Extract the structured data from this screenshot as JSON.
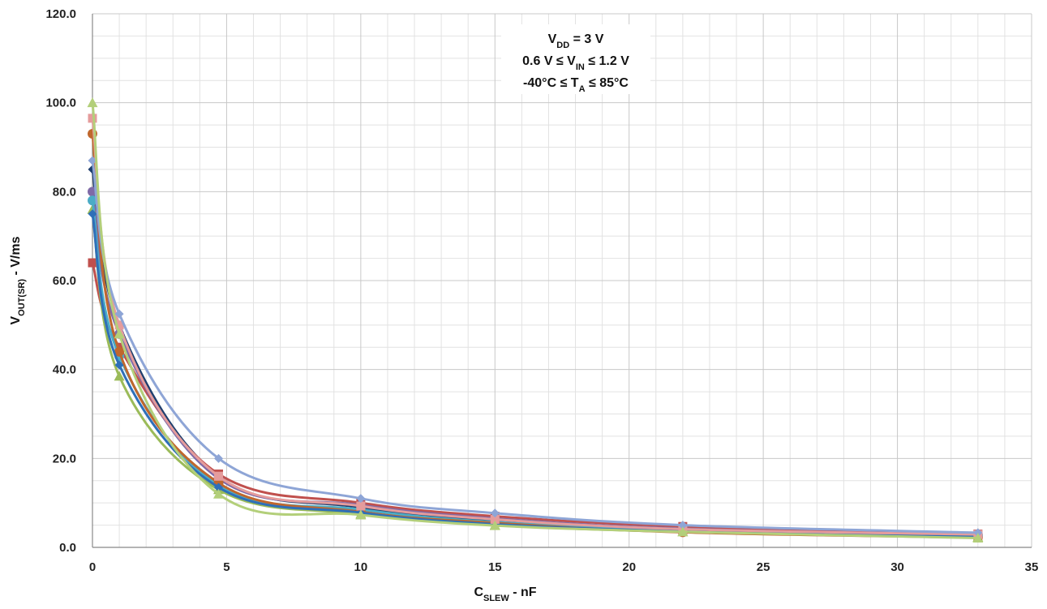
{
  "chart_data": {
    "type": "line",
    "title": "",
    "xlabel": {
      "main": "C",
      "sub": "SLEW",
      "rest": " - nF"
    },
    "ylabel": {
      "main": "V",
      "sub": "OUT(SR)",
      "rest": " - V/ms"
    },
    "xlim": [
      0,
      35
    ],
    "ylim": [
      0,
      120
    ],
    "x_ticks": [
      0,
      5,
      10,
      15,
      20,
      25,
      30,
      35
    ],
    "x_tick_labels": [
      "0",
      "5",
      "10",
      "15",
      "20",
      "25",
      "30",
      "35"
    ],
    "y_ticks": [
      0,
      20,
      40,
      60,
      80,
      100,
      120
    ],
    "y_tick_labels": [
      "0.0",
      "20.0",
      "40.0",
      "60.0",
      "80.0",
      "100.0",
      "120.0"
    ],
    "grid": true,
    "legend": "none",
    "annotation_lines": [
      [
        {
          "t": "V"
        },
        {
          "t": "DD",
          "sub": true
        },
        {
          "t": " = 3 V"
        }
      ],
      [
        {
          "t": "0.6 V ≤ V"
        },
        {
          "t": "IN",
          "sub": true
        },
        {
          "t": " ≤ 1.2 V"
        }
      ],
      [
        {
          "t": "-40°C ≤ T"
        },
        {
          "t": "A",
          "sub": true
        },
        {
          "t": " ≤ 85°C"
        }
      ]
    ],
    "x": [
      0,
      1,
      4.7,
      10,
      15,
      22,
      33
    ],
    "series": [
      {
        "color": "#1f3f6e",
        "marker": "diamond",
        "values": [
          85.0,
          50.0,
          16.0,
          9.0,
          6.0,
          4.0,
          2.7
        ]
      },
      {
        "color": "#c0504d",
        "marker": "square",
        "values": [
          64.0,
          45.0,
          16.5,
          10.0,
          7.0,
          4.7,
          3.0
        ]
      },
      {
        "color": "#9bbb59",
        "marker": "triangle",
        "values": [
          76.0,
          38.5,
          13.0,
          7.5,
          5.0,
          3.5,
          2.3
        ]
      },
      {
        "color": "#7f6aa7",
        "marker": "circle",
        "values": [
          80.0,
          48.0,
          15.5,
          9.5,
          6.5,
          4.2,
          2.8
        ]
      },
      {
        "color": "#4bacc6",
        "marker": "circle",
        "values": [
          78.0,
          43.0,
          14.0,
          8.5,
          5.7,
          3.9,
          2.5
        ]
      },
      {
        "color": "#c0672d",
        "marker": "circle",
        "values": [
          93.0,
          44.0,
          14.5,
          8.0,
          5.5,
          3.4,
          2.2
        ]
      },
      {
        "color": "#2e6fb8",
        "marker": "diamond",
        "values": [
          75.0,
          41.0,
          13.5,
          7.8,
          5.2,
          3.6,
          2.4
        ]
      },
      {
        "color": "#e59c9c",
        "marker": "square",
        "values": [
          96.5,
          50.0,
          16.0,
          9.3,
          6.3,
          4.1,
          2.9
        ]
      },
      {
        "color": "#8ea5d6",
        "marker": "diamond",
        "values": [
          87.0,
          52.5,
          20.0,
          11.0,
          7.7,
          5.0,
          3.3
        ]
      },
      {
        "color": "#b3cf7a",
        "marker": "triangle",
        "values": [
          100.0,
          48.0,
          12.0,
          7.3,
          4.9,
          3.5,
          2.1
        ]
      }
    ]
  }
}
